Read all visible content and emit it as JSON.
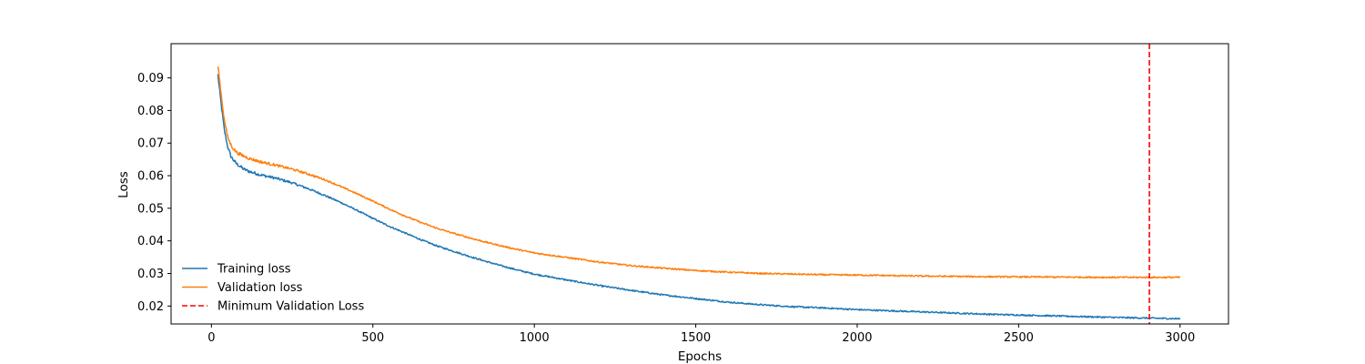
{
  "chart_data": {
    "type": "line",
    "title": "",
    "xlabel": "Epochs",
    "ylabel": "Loss",
    "xlim": [
      -125,
      3150
    ],
    "ylim": [
      0.0145,
      0.1005
    ],
    "xticks": [
      0,
      500,
      1000,
      1500,
      2000,
      2500,
      3000
    ],
    "xtick_labels": [
      "0",
      "500",
      "1000",
      "1500",
      "2000",
      "2500",
      "3000"
    ],
    "yticks": [
      0.02,
      0.03,
      0.04,
      0.05,
      0.06,
      0.07,
      0.08,
      0.09
    ],
    "ytick_labels": [
      "0.02",
      "0.03",
      "0.04",
      "0.05",
      "0.06",
      "0.07",
      "0.08",
      "0.09"
    ],
    "grid": false,
    "legend_position": "lower-left",
    "series": [
      {
        "name": "Training loss",
        "color": "#1f77b4",
        "x": [
          20,
          30,
          40,
          50,
          60,
          70,
          80,
          100,
          120,
          150,
          200,
          250,
          300,
          350,
          400,
          450,
          500,
          550,
          600,
          650,
          700,
          750,
          800,
          850,
          900,
          950,
          1000,
          1100,
          1200,
          1300,
          1400,
          1500,
          1600,
          1700,
          1800,
          1900,
          2000,
          2200,
          2400,
          2600,
          2800,
          3000
        ],
        "y": [
          0.091,
          0.082,
          0.074,
          0.069,
          0.066,
          0.0645,
          0.0635,
          0.062,
          0.0612,
          0.0603,
          0.0592,
          0.0578,
          0.056,
          0.054,
          0.0518,
          0.0494,
          0.0469,
          0.0445,
          0.0424,
          0.0403,
          0.0384,
          0.0368,
          0.0352,
          0.0337,
          0.0323,
          0.031,
          0.0298,
          0.028,
          0.0263,
          0.0248,
          0.0234,
          0.0223,
          0.0212,
          0.0204,
          0.0198,
          0.0194,
          0.0189,
          0.0182,
          0.0175,
          0.017,
          0.0165,
          0.0161
        ]
      },
      {
        "name": "Validation loss",
        "color": "#ff7f0e",
        "x": [
          20,
          30,
          40,
          50,
          60,
          70,
          80,
          100,
          120,
          150,
          200,
          250,
          300,
          350,
          400,
          450,
          500,
          550,
          600,
          650,
          700,
          750,
          800,
          850,
          900,
          950,
          1000,
          1100,
          1200,
          1300,
          1400,
          1500,
          1600,
          1700,
          1800,
          1900,
          2000,
          2200,
          2400,
          2600,
          2800,
          3000
        ],
        "y": [
          0.094,
          0.085,
          0.077,
          0.072,
          0.0695,
          0.068,
          0.067,
          0.066,
          0.0652,
          0.0643,
          0.0632,
          0.062,
          0.0605,
          0.0588,
          0.0567,
          0.0545,
          0.0522,
          0.0498,
          0.0476,
          0.0456,
          0.0438,
          0.0423,
          0.0409,
          0.0396,
          0.0384,
          0.0373,
          0.0363,
          0.0349,
          0.0335,
          0.0324,
          0.0316,
          0.0309,
          0.0304,
          0.03,
          0.0298,
          0.0296,
          0.0295,
          0.0292,
          0.029,
          0.0289,
          0.0288,
          0.0288
        ]
      }
    ],
    "vlines": [
      {
        "name": "Minimum Validation Loss",
        "x": 2905,
        "color": "#ff0000",
        "style": "dashed"
      }
    ]
  }
}
